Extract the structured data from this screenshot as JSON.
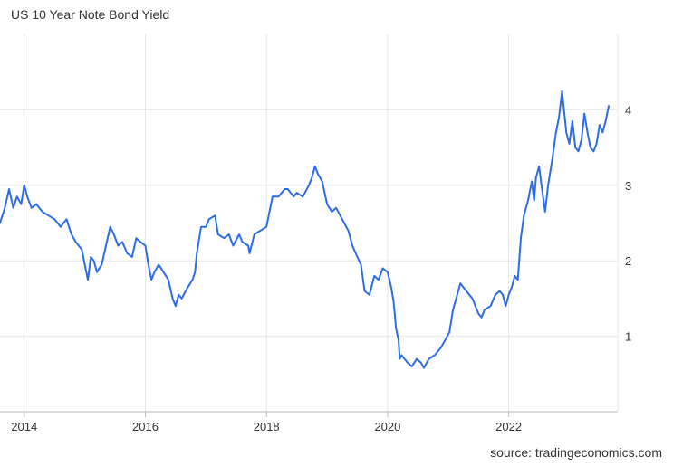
{
  "chart_data": {
    "type": "line",
    "title": "US 10 Year Note Bond Yield",
    "source": "source: tradingeconomics.com",
    "xlabel": "",
    "ylabel": "",
    "xlim": [
      2013.6,
      2023.8
    ],
    "ylim": [
      0,
      5
    ],
    "x_ticks": [
      2014,
      2016,
      2018,
      2020,
      2022
    ],
    "y_ticks": [
      1,
      2,
      3,
      4
    ],
    "grid": true,
    "line_color": "#2e6ce6",
    "series": [
      {
        "x": [
          2013.6,
          2013.68,
          2013.75,
          2013.82,
          2013.88,
          2013.95,
          2014.0,
          2014.05,
          2014.12,
          2014.2,
          2014.3,
          2014.4,
          2014.5,
          2014.6,
          2014.7,
          2014.78,
          2014.85,
          2014.9,
          2014.95,
          2015.0,
          2015.05,
          2015.1,
          2015.15,
          2015.2,
          2015.28,
          2015.35,
          2015.42,
          2015.48,
          2015.55,
          2015.62,
          2015.7,
          2015.78,
          2015.85,
          2015.92,
          2016.0,
          2016.05,
          2016.1,
          2016.15,
          2016.22,
          2016.3,
          2016.38,
          2016.45,
          2016.5,
          2016.55,
          2016.6,
          2016.7,
          2016.78,
          2016.82,
          2016.85,
          2016.92,
          2017.0,
          2017.05,
          2017.15,
          2017.2,
          2017.3,
          2017.38,
          2017.45,
          2017.55,
          2017.6,
          2017.7,
          2017.72,
          2017.8,
          2017.9,
          2018.0,
          2018.05,
          2018.1,
          2018.2,
          2018.3,
          2018.35,
          2018.45,
          2018.5,
          2018.6,
          2018.7,
          2018.75,
          2018.8,
          2018.85,
          2018.92,
          2019.0,
          2019.08,
          2019.15,
          2019.25,
          2019.35,
          2019.42,
          2019.5,
          2019.56,
          2019.62,
          2019.7,
          2019.78,
          2019.85,
          2019.92,
          2020.0,
          2020.06,
          2020.1,
          2020.14,
          2020.18,
          2020.2,
          2020.23,
          2020.28,
          2020.33,
          2020.4,
          2020.48,
          2020.55,
          2020.6,
          2020.68,
          2020.78,
          2020.88,
          2020.95,
          2021.02,
          2021.08,
          2021.15,
          2021.2,
          2021.3,
          2021.4,
          2021.5,
          2021.55,
          2021.6,
          2021.7,
          2021.78,
          2021.85,
          2021.9,
          2021.95,
          2022.0,
          2022.05,
          2022.1,
          2022.15,
          2022.2,
          2022.25,
          2022.32,
          2022.38,
          2022.42,
          2022.45,
          2022.5,
          2022.55,
          2022.6,
          2022.65,
          2022.72,
          2022.78,
          2022.83,
          2022.88,
          2022.9,
          2022.95,
          2023.0,
          2023.05,
          2023.1,
          2023.15,
          2023.2,
          2023.25,
          2023.3,
          2023.35,
          2023.4,
          2023.45,
          2023.5,
          2023.55,
          2023.6,
          2023.65
        ],
        "y": [
          2.5,
          2.7,
          2.95,
          2.7,
          2.85,
          2.75,
          3.0,
          2.85,
          2.7,
          2.75,
          2.65,
          2.6,
          2.55,
          2.45,
          2.55,
          2.35,
          2.25,
          2.2,
          2.15,
          1.95,
          1.75,
          2.05,
          2.0,
          1.85,
          1.95,
          2.2,
          2.45,
          2.35,
          2.2,
          2.25,
          2.1,
          2.05,
          2.3,
          2.25,
          2.2,
          1.95,
          1.75,
          1.85,
          1.95,
          1.85,
          1.75,
          1.5,
          1.4,
          1.55,
          1.5,
          1.65,
          1.75,
          1.85,
          2.1,
          2.45,
          2.45,
          2.55,
          2.6,
          2.35,
          2.3,
          2.35,
          2.2,
          2.35,
          2.25,
          2.2,
          2.1,
          2.35,
          2.4,
          2.45,
          2.65,
          2.85,
          2.85,
          2.95,
          2.95,
          2.85,
          2.9,
          2.85,
          3.0,
          3.1,
          3.25,
          3.15,
          3.05,
          2.75,
          2.65,
          2.7,
          2.55,
          2.4,
          2.2,
          2.05,
          1.95,
          1.6,
          1.55,
          1.8,
          1.75,
          1.9,
          1.85,
          1.65,
          1.45,
          1.1,
          0.95,
          0.7,
          0.75,
          0.7,
          0.65,
          0.6,
          0.7,
          0.65,
          0.58,
          0.7,
          0.75,
          0.85,
          0.95,
          1.05,
          1.35,
          1.55,
          1.7,
          1.6,
          1.5,
          1.3,
          1.25,
          1.35,
          1.4,
          1.55,
          1.6,
          1.55,
          1.4,
          1.55,
          1.65,
          1.8,
          1.75,
          2.3,
          2.6,
          2.8,
          3.05,
          2.8,
          3.1,
          3.25,
          2.95,
          2.65,
          3.0,
          3.35,
          3.7,
          3.9,
          4.25,
          4.1,
          3.7,
          3.55,
          3.85,
          3.5,
          3.45,
          3.6,
          3.95,
          3.7,
          3.5,
          3.45,
          3.55,
          3.8,
          3.7,
          3.85,
          4.05
        ]
      }
    ]
  }
}
